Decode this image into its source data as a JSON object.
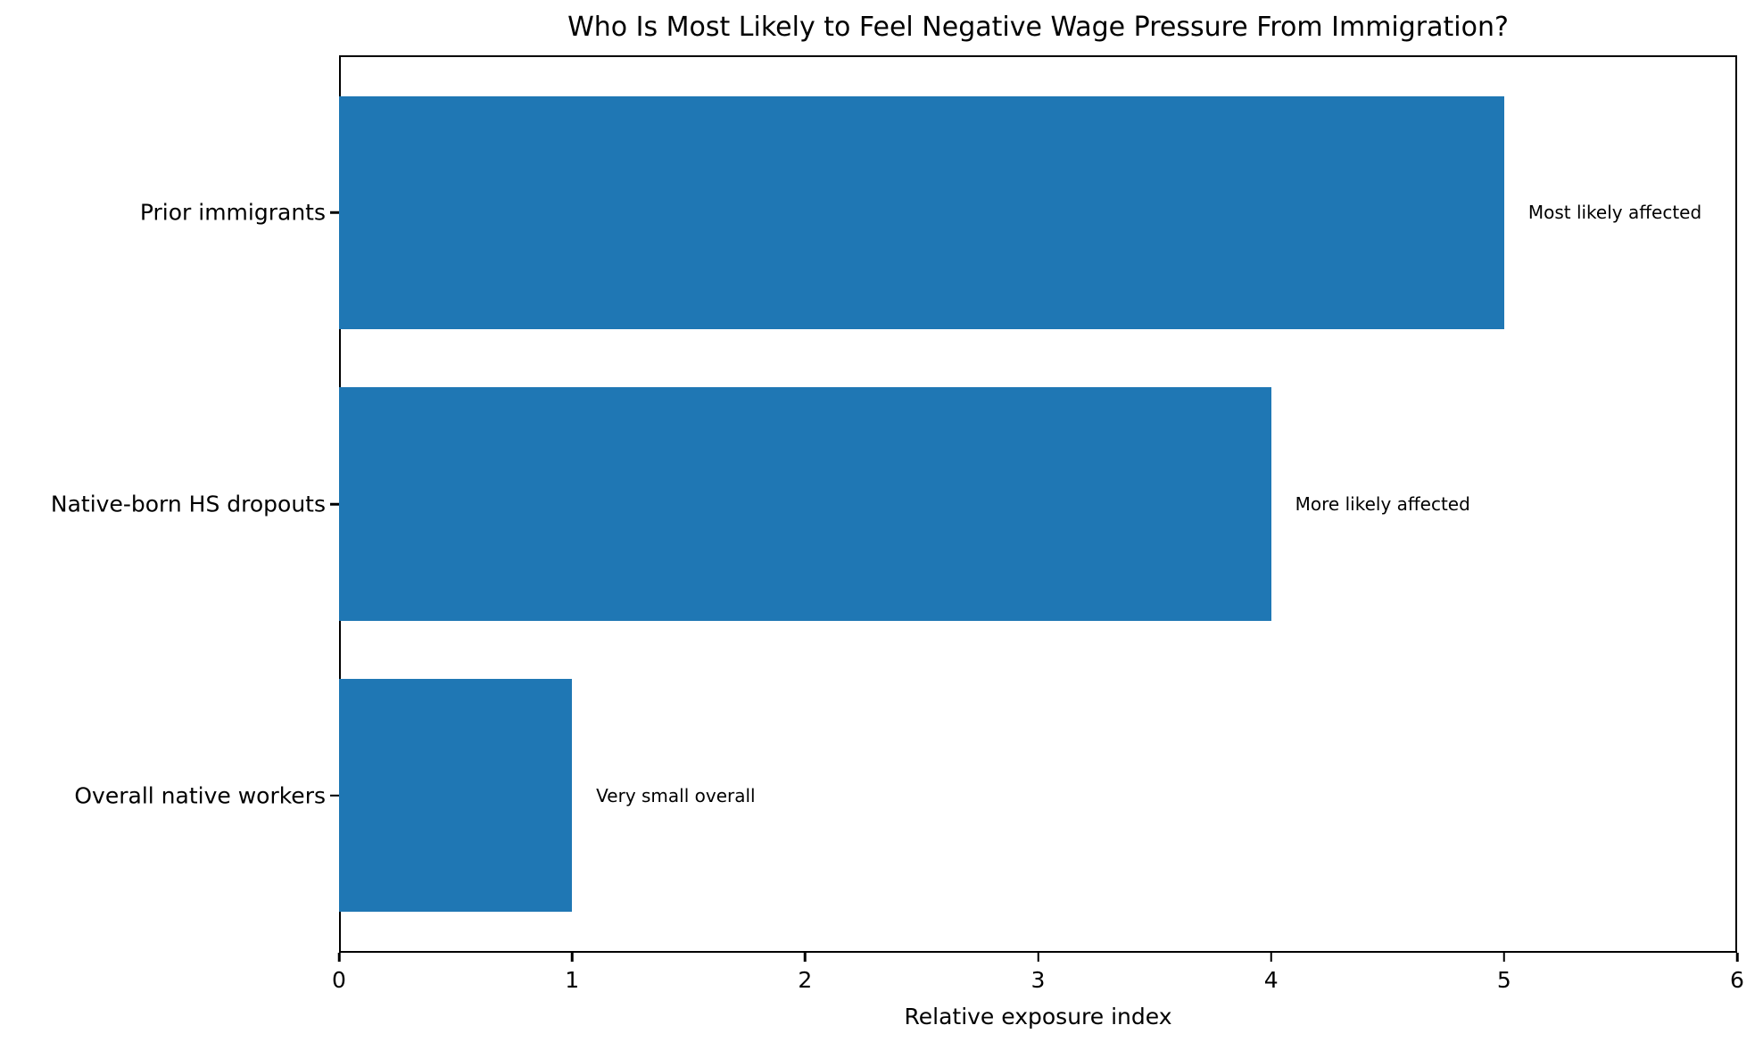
{
  "chart_data": {
    "type": "bar",
    "orientation": "horizontal",
    "title": "Who Is Most Likely to Feel Negative Wage Pressure From Immigration?",
    "categories": [
      "Prior immigrants",
      "Native-born HS dropouts",
      "Overall native workers"
    ],
    "values": [
      5,
      4,
      1
    ],
    "annotations": [
      "Most likely affected",
      "More likely affected",
      "Very small overall"
    ],
    "xlabel": "Relative exposure index",
    "ylabel": "",
    "xlim": [
      0,
      6
    ],
    "x_ticks": [
      0,
      1,
      2,
      3,
      4,
      5,
      6
    ],
    "bar_color": "#1f77b4",
    "text_color": "#000000",
    "background_color": "#ffffff",
    "grid": false,
    "legend": null
  }
}
